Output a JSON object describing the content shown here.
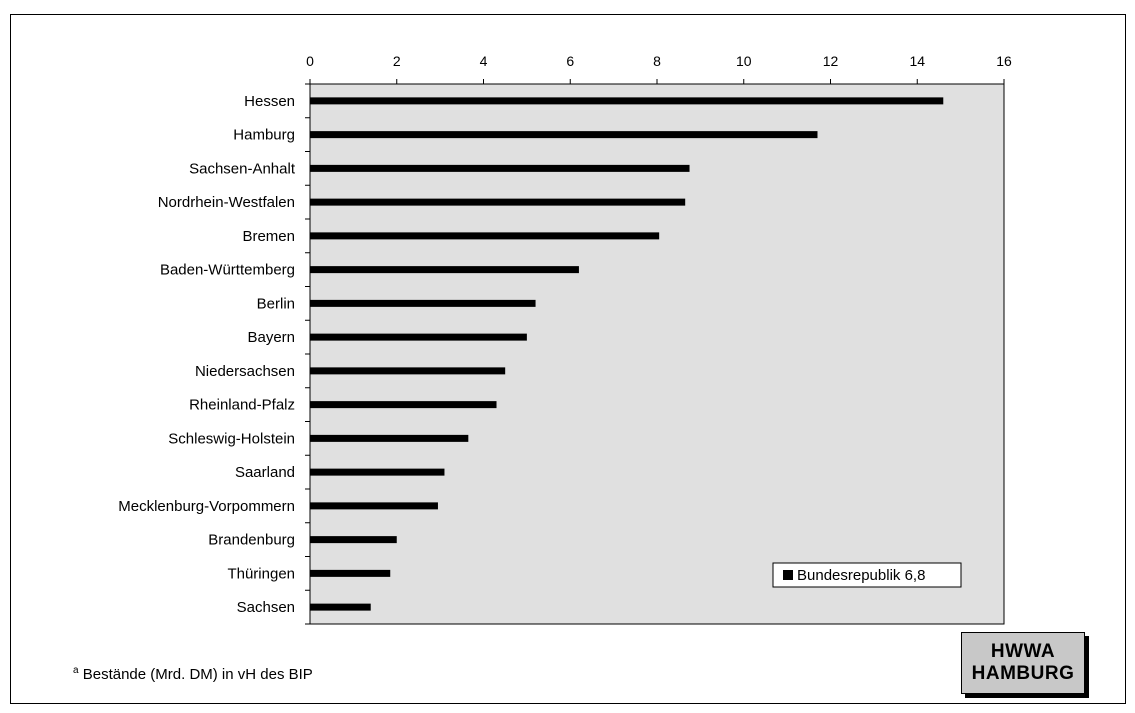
{
  "chart_data": {
    "type": "bar",
    "orientation": "horizontal",
    "categories": [
      "Hessen",
      "Hamburg",
      "Sachsen-Anhalt",
      "Nordrhein-Westfalen",
      "Bremen",
      "Baden-Württemberg",
      "Berlin",
      "Bayern",
      "Niedersachsen",
      "Rheinland-Pfalz",
      "Schleswig-Holstein",
      "Saarland",
      "Mecklenburg-Vorpommern",
      "Brandenburg",
      "Thüringen",
      "Sachsen"
    ],
    "values": [
      14.6,
      11.7,
      8.75,
      8.65,
      8.05,
      6.2,
      5.2,
      5.0,
      4.5,
      4.3,
      3.65,
      3.1,
      2.95,
      2.0,
      1.85,
      1.4
    ],
    "xlim": [
      0,
      16
    ],
    "xticks": [
      "0",
      "2",
      "4",
      "6",
      "8",
      "10",
      "12",
      "14",
      "16"
    ],
    "xaxis_position": "top",
    "legend": {
      "label": "Bundesrepublik 6,8",
      "placement": "bottom-right"
    },
    "colors": {
      "bar": "#000000",
      "plot_background": "#e0e0e0"
    },
    "grid": false
  },
  "footnote": {
    "marker": "a",
    "text": " Bestände (Mrd. DM) in vH des BIP"
  },
  "badge": {
    "line1": "HWWA",
    "line2": "HAMBURG"
  }
}
